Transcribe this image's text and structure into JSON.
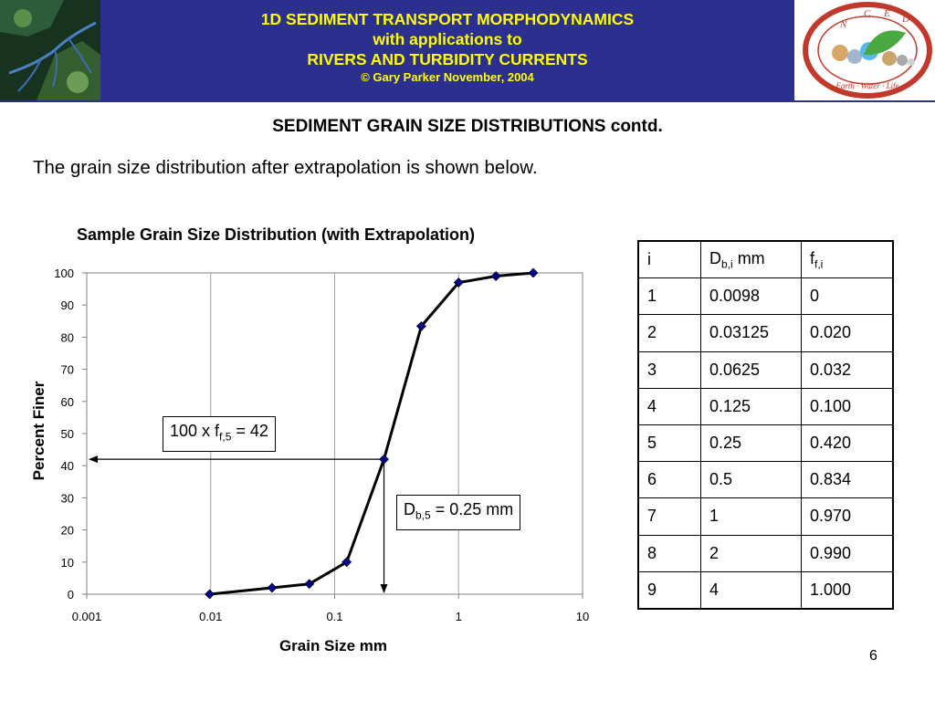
{
  "header": {
    "title_line1": "1D SEDIMENT TRANSPORT MORPHODYNAMICS",
    "title_line2": "with applications to",
    "title_line3": "RIVERS AND TURBIDITY CURRENTS",
    "copyright": "© Gary Parker November, 2004",
    "logo_letters": [
      "N",
      "C",
      "E",
      "D"
    ],
    "logo_motto": "Earth · Water · Life",
    "colors": {
      "banner": "#2b2f8e",
      "banner_text": "#ffff00",
      "logo_ring": "#c0392b"
    }
  },
  "slide": {
    "title": "SEDIMENT GRAIN SIZE DISTRIBUTIONS contd.",
    "intro": "The grain size distribution after extrapolation is shown below.",
    "page_number": "6"
  },
  "callouts": {
    "f_prefix": "100 x f",
    "f_sub": "f,5",
    "f_suffix": " = 42",
    "d_prefix": "D",
    "d_sub": "b,5",
    "d_suffix": " = 0.25 mm"
  },
  "chart_data": {
    "type": "line",
    "title": "Sample Grain Size Distribution (with Extrapolation)",
    "xlabel": "Grain Size mm",
    "ylabel": "Percent Finer",
    "x_scale": "log",
    "xlim": [
      0.001,
      10
    ],
    "ylim": [
      0,
      100
    ],
    "x_ticks": [
      0.001,
      0.01,
      0.1,
      1,
      10
    ],
    "x_tick_labels": [
      "0.001",
      "0.01",
      "0.1",
      "1",
      "10"
    ],
    "y_ticks": [
      0,
      10,
      20,
      30,
      40,
      50,
      60,
      70,
      80,
      90,
      100
    ],
    "y_tick_labels": [
      "0",
      "10",
      "20",
      "30",
      "40",
      "50",
      "60",
      "70",
      "80",
      "90",
      "100"
    ],
    "grid": "vertical",
    "series": [
      {
        "x": [
          0.0098,
          0.03125,
          0.0625,
          0.125,
          0.25,
          0.5,
          1,
          2,
          4
        ],
        "y": [
          0,
          2,
          3.2,
          10,
          42,
          83.4,
          97,
          99,
          100
        ],
        "color": "#000000",
        "marker_color": "#00008b"
      }
    ],
    "annotations": [
      {
        "type": "horizontal-arrow",
        "y": 42,
        "from_x": 0.25,
        "to_x": 0.001
      },
      {
        "type": "vertical-arrow",
        "x": 0.25,
        "from_y": 42,
        "to_y": 0
      }
    ]
  },
  "table": {
    "headers": [
      {
        "base": "i",
        "sub": "",
        "suffix": ""
      },
      {
        "base": "D",
        "sub": "b,i",
        "suffix": " mm"
      },
      {
        "base": "f",
        "sub": "f,i",
        "suffix": ""
      }
    ],
    "rows": [
      [
        "1",
        "0.0098",
        "0"
      ],
      [
        "2",
        "0.03125",
        "0.020"
      ],
      [
        "3",
        "0.0625",
        "0.032"
      ],
      [
        "4",
        "0.125",
        "0.100"
      ],
      [
        "5",
        "0.25",
        "0.420"
      ],
      [
        "6",
        "0.5",
        "0.834"
      ],
      [
        "7",
        "1",
        "0.970"
      ],
      [
        "8",
        "2",
        "0.990"
      ],
      [
        "9",
        "4",
        "1.000"
      ]
    ]
  }
}
